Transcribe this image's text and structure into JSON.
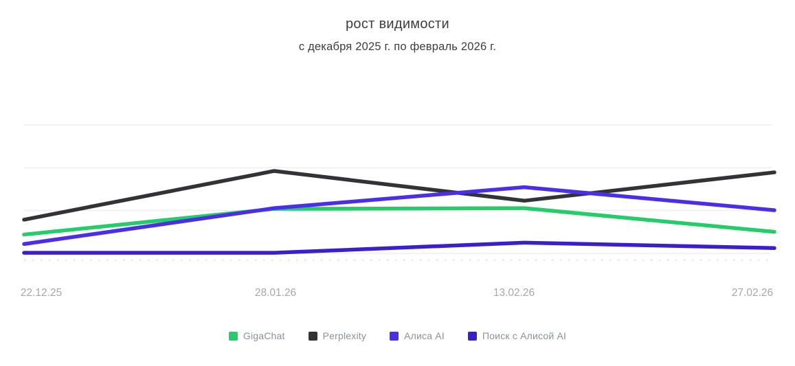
{
  "chart_data": {
    "type": "line",
    "title": "рост видимости",
    "subtitle": "с декабря 2025 г. по февраль 2026 г.",
    "x_labels": [
      "22.12.25",
      "28.01.26",
      "13.02.26",
      "27.02.26"
    ],
    "y_axis": {
      "tick_labels_visible": false,
      "scale_note": "no numeric labels shown; values are relative height, top gridline = 1.0, dashed baseline = 0",
      "range": [
        0,
        1.12
      ],
      "gridlines": 4,
      "gridline_color": "#efefef",
      "baseline_style": "dotted"
    },
    "legend_position": "bottom",
    "series": [
      {
        "name": "GigaChat",
        "color": "#25cd6a",
        "values": [
          0.19,
          0.38,
          0.385,
          0.21
        ]
      },
      {
        "name": "Perplexity",
        "color": "#313336",
        "values": [
          0.3,
          0.66,
          0.44,
          0.65
        ]
      },
      {
        "name": "Алиса AI",
        "color": "#4b2ee8",
        "values": [
          0.12,
          0.385,
          0.54,
          0.37
        ]
      },
      {
        "name": "Поиск с Алисой AI",
        "color": "#3a20cc",
        "values": [
          0.055,
          0.055,
          0.13,
          0.09
        ]
      }
    ]
  }
}
